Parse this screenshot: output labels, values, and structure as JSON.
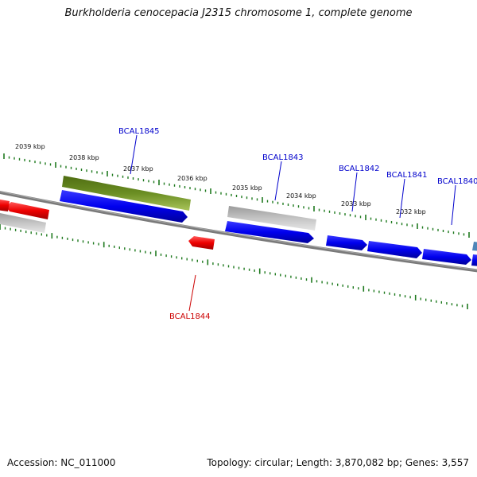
{
  "title": "Burkholderia cenocepacia J2315 chromosome 1, complete genome",
  "footer": {
    "accession": "Accession: NC_011000",
    "summary": "Topology: circular; Length: 3,870,082 bp; Genes: 3,557"
  },
  "colors": {
    "backbone": "#7a7a7a",
    "cds_forward": "#0000ee",
    "cds_reverse": "#ee0000",
    "gray_feature": "#b8b8b8",
    "olive_feature": "#6b8e23",
    "tick": "#1f7a1f",
    "label_forward": "#0000cc",
    "label_reverse": "#cc0000"
  },
  "scale": {
    "unit": "kbp",
    "tick_labels": [
      "2039 kbp",
      "2038 kbp",
      "2037 kbp",
      "2036 kbp",
      "2035 kbp",
      "2034 kbp",
      "2033 kbp",
      "2032 kbp"
    ]
  },
  "genes": {
    "forward": [
      "BCAL1845",
      "BCAL1843",
      "BCAL1842",
      "BCAL1841",
      "BCAL1840"
    ],
    "reverse": [
      "BCAL1844"
    ]
  }
}
